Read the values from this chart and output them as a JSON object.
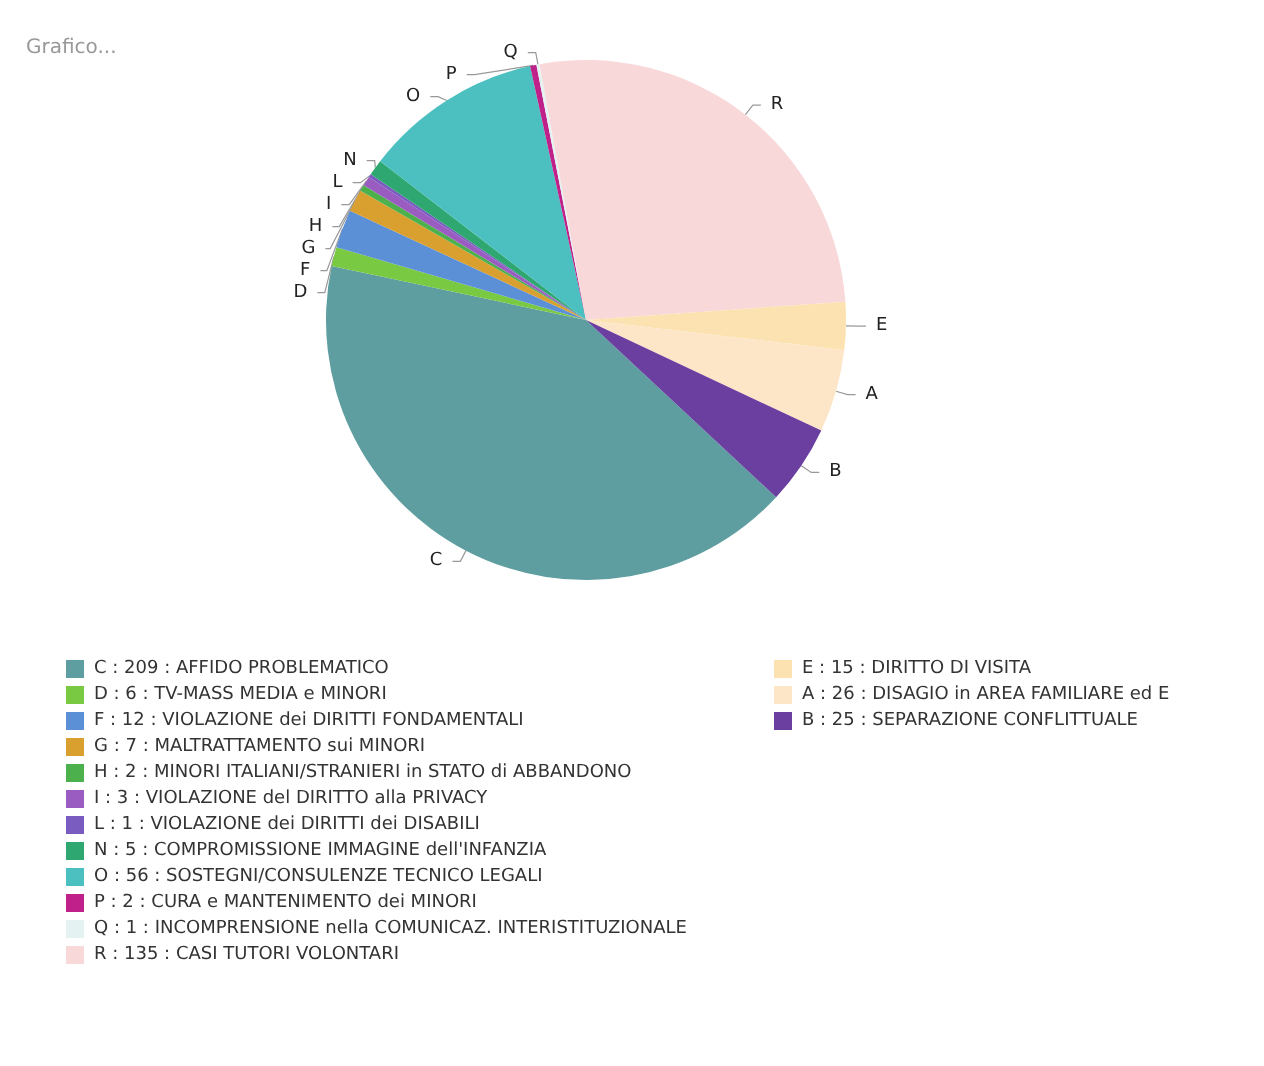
{
  "chart_data": {
    "type": "pie",
    "title": "Grafico...",
    "categories": [
      "C : 209 : AFFIDO PROBLEMATICO",
      "D : 6 : TV-MASS MEDIA e MINORI",
      "F : 12 : VIOLAZIONE dei DIRITTI FONDAMENTALI",
      "G : 7 : MALTRATTAMENTO sui MINORI",
      "H : 2 : MINORI ITALIANI/STRANIERI in STATO di ABBANDONO",
      "I : 3 : VIOLAZIONE del DIRITTO alla PRIVACY",
      "L : 1 : VIOLAZIONE dei DIRITTI dei DISABILI",
      "N : 5 : COMPROMISSIONE IMMAGINE dell'INFANZIA",
      "O : 56 : SOSTEGNI/CONSULENZE TECNICO LEGALI",
      "P : 2 : CURA e MANTENIMENTO dei MINORI",
      "Q : 1 : INCOMPRENSIONE nella COMUNICAZ. INTERISTITUZIONALE",
      "R : 135 : CASI TUTORI VOLONTARI",
      "E : 15 : DIRITTO DI VISITA",
      "A : 26 : DISAGIO in AREA FAMILIARE ed E",
      "B : 25 : SEPARAZIONE CONFLITTUALE"
    ],
    "values": [
      209,
      6,
      12,
      7,
      2,
      3,
      1,
      5,
      56,
      2,
      1,
      135,
      15,
      26,
      25
    ],
    "colors": [
      "#5f9ea0",
      "#7ac943",
      "#5b8fd6",
      "#d9a030",
      "#4cb04c",
      "#9a5cc0",
      "#7a5cc0",
      "#2ea870",
      "#4cc0c0",
      "#c0208a",
      "#e4f2f2",
      "#f8d8d8",
      "#fbe2b0",
      "#fde6c8",
      "#6a3fa0"
    ],
    "value_labels": [
      "C",
      "D",
      "F",
      "G",
      "H",
      "I",
      "L",
      "N",
      "O",
      "P",
      "Q",
      "R",
      "E",
      "A",
      "B"
    ],
    "legend": "bottom"
  }
}
